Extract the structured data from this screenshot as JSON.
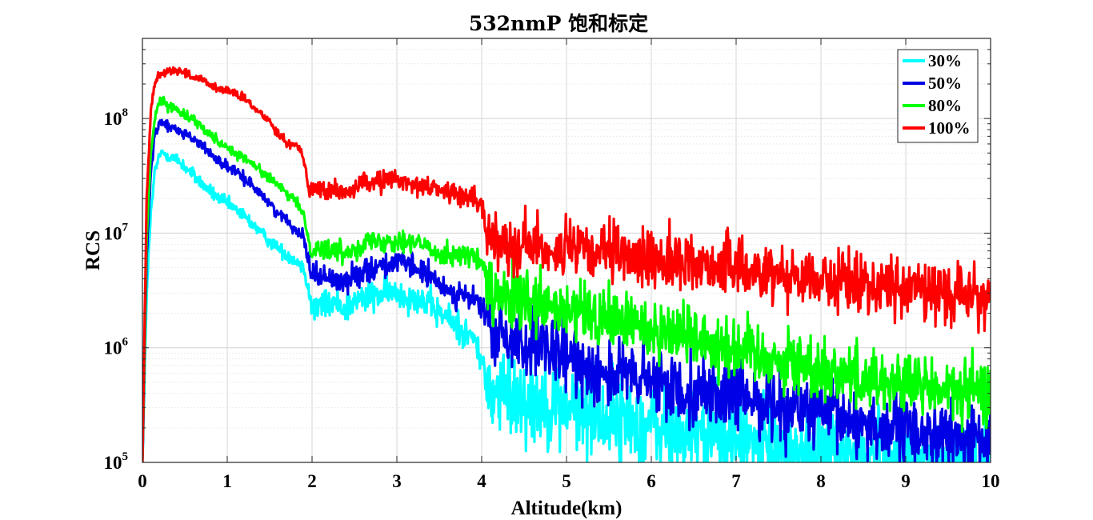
{
  "chart_data": {
    "type": "line",
    "title": "532nmP 饱和标定",
    "xlabel": "Altitude(km)",
    "ylabel": "RCS",
    "xlim": [
      0,
      10
    ],
    "ylim": [
      100000,
      500000000
    ],
    "yscale": "log",
    "grid": true,
    "legend_position": "top-right",
    "x_ticks": [
      "0",
      "1",
      "2",
      "3",
      "4",
      "5",
      "6",
      "7",
      "8",
      "9",
      "10"
    ],
    "y_ticks": [
      {
        "base": "10",
        "exp": "5"
      },
      {
        "base": "10",
        "exp": "6"
      },
      {
        "base": "10",
        "exp": "7"
      },
      {
        "base": "10",
        "exp": "8"
      }
    ],
    "series": [
      {
        "name": "30%",
        "color": "#00ffff",
        "x": [
          0,
          0.05,
          0.1,
          0.15,
          0.2,
          0.25,
          0.3,
          0.4,
          0.5,
          0.6,
          0.7,
          0.8,
          0.9,
          1.0,
          1.1,
          1.2,
          1.3,
          1.4,
          1.5,
          1.6,
          1.7,
          1.8,
          1.85,
          1.9,
          1.95,
          2.0,
          2.1,
          2.2,
          2.3,
          2.4,
          2.5,
          2.6,
          2.7,
          2.8,
          2.9,
          3.0,
          3.1,
          3.2,
          3.3,
          3.4,
          3.5,
          3.6,
          3.7,
          3.8,
          3.9,
          4.0,
          4.05,
          4.1,
          4.3,
          4.5,
          5.0,
          5.5,
          6.0,
          6.5,
          7.0,
          7.5,
          8.0,
          8.5,
          9.0,
          9.5,
          10.0
        ],
        "values": [
          100000,
          3000000,
          15000000,
          35000000,
          48000000,
          50000000,
          48000000,
          44000000,
          38000000,
          32000000,
          27000000,
          23000000,
          20000000,
          18000000,
          16000000,
          14000000,
          12000000,
          10000000,
          8500000,
          7500000,
          6500000,
          5800000,
          5500000,
          5000000,
          3500000,
          2200000,
          2300000,
          2400000,
          2400000,
          2300000,
          2500000,
          2700000,
          2800000,
          2900000,
          3000000,
          3000000,
          2900000,
          2800000,
          2600000,
          2300000,
          2000000,
          1800000,
          1600000,
          1400000,
          1200000,
          800000,
          500000,
          420000,
          400000,
          380000,
          300000,
          250000,
          200000,
          180000,
          150000,
          130000,
          120000,
          115000,
          110000,
          105000,
          100000
        ],
        "noise": 0.28
      },
      {
        "name": "50%",
        "color": "#0000e6",
        "x": [
          0,
          0.05,
          0.1,
          0.15,
          0.2,
          0.25,
          0.3,
          0.4,
          0.5,
          0.6,
          0.7,
          0.8,
          0.9,
          1.0,
          1.1,
          1.2,
          1.3,
          1.4,
          1.5,
          1.6,
          1.7,
          1.8,
          1.85,
          1.9,
          1.95,
          2.0,
          2.1,
          2.2,
          2.3,
          2.4,
          2.5,
          2.6,
          2.7,
          2.8,
          2.9,
          3.0,
          3.1,
          3.2,
          3.3,
          3.4,
          3.5,
          3.6,
          3.7,
          3.8,
          3.9,
          4.0,
          4.05,
          4.1,
          4.3,
          4.5,
          5.0,
          5.5,
          6.0,
          6.5,
          7.0,
          7.5,
          8.0,
          8.5,
          9.0,
          9.5,
          10.0
        ],
        "values": [
          100000,
          6000000,
          35000000,
          75000000,
          90000000,
          92000000,
          86000000,
          80000000,
          75000000,
          66000000,
          58000000,
          50000000,
          43000000,
          38000000,
          34000000,
          30000000,
          26000000,
          22000000,
          18000000,
          15000000,
          13000000,
          11000000,
          10000000,
          9500000,
          6000000,
          4500000,
          4200000,
          4000000,
          3900000,
          3800000,
          4200000,
          4700000,
          5000000,
          5200000,
          5400000,
          5500000,
          5300000,
          5000000,
          4600000,
          4000000,
          3600000,
          3200000,
          3000000,
          2800000,
          2600000,
          2400000,
          1800000,
          1300000,
          1200000,
          1100000,
          800000,
          600000,
          500000,
          420000,
          380000,
          320000,
          260000,
          220000,
          190000,
          160000,
          150000
        ],
        "noise": 0.22
      },
      {
        "name": "80%",
        "color": "#00ff00",
        "x": [
          0,
          0.05,
          0.1,
          0.15,
          0.2,
          0.25,
          0.3,
          0.4,
          0.5,
          0.6,
          0.7,
          0.8,
          0.9,
          1.0,
          1.1,
          1.2,
          1.3,
          1.4,
          1.5,
          1.6,
          1.7,
          1.8,
          1.85,
          1.9,
          1.95,
          2.0,
          2.1,
          2.2,
          2.3,
          2.4,
          2.5,
          2.6,
          2.7,
          2.8,
          2.9,
          3.0,
          3.1,
          3.2,
          3.3,
          3.4,
          3.5,
          3.6,
          3.7,
          3.8,
          3.9,
          4.0,
          4.05,
          4.1,
          4.3,
          4.5,
          5.0,
          5.5,
          6.0,
          6.5,
          7.0,
          7.5,
          8.0,
          8.5,
          9.0,
          9.5,
          10.0
        ],
        "values": [
          100000,
          9000000,
          50000000,
          110000000,
          135000000,
          140000000,
          130000000,
          120000000,
          110000000,
          98000000,
          86000000,
          74000000,
          63000000,
          56000000,
          50000000,
          45000000,
          40000000,
          35000000,
          30000000,
          26000000,
          22000000,
          19000000,
          17000000,
          15000000,
          9000000,
          7500000,
          7300000,
          7200000,
          7000000,
          6800000,
          7500000,
          8200000,
          8500000,
          8500000,
          8600000,
          8800000,
          8600000,
          8300000,
          7800000,
          7200000,
          6800000,
          6600000,
          6500000,
          6500000,
          6200000,
          5500000,
          4000000,
          2800000,
          2600000,
          2400000,
          2000000,
          1800000,
          1500000,
          1300000,
          1000000,
          800000,
          650000,
          550000,
          480000,
          420000,
          400000
        ],
        "noise": 0.2
      },
      {
        "name": "100%",
        "color": "#ff0000",
        "x": [
          0,
          0.05,
          0.1,
          0.15,
          0.2,
          0.25,
          0.3,
          0.4,
          0.5,
          0.6,
          0.7,
          0.8,
          0.9,
          1.0,
          1.1,
          1.2,
          1.3,
          1.4,
          1.5,
          1.6,
          1.7,
          1.8,
          1.85,
          1.9,
          1.95,
          2.0,
          2.1,
          2.2,
          2.3,
          2.4,
          2.5,
          2.6,
          2.7,
          2.8,
          2.9,
          3.0,
          3.1,
          3.2,
          3.3,
          3.4,
          3.5,
          3.6,
          3.7,
          3.8,
          3.9,
          4.0,
          4.05,
          4.1,
          4.3,
          4.5,
          5.0,
          5.5,
          6.0,
          6.5,
          7.0,
          7.5,
          8.0,
          8.5,
          9.0,
          9.5,
          10.0
        ],
        "values": [
          100000,
          20000000,
          120000000,
          210000000,
          240000000,
          255000000,
          260000000,
          265000000,
          250000000,
          230000000,
          215000000,
          195000000,
          180000000,
          175000000,
          165000000,
          150000000,
          125000000,
          110000000,
          95000000,
          75000000,
          62000000,
          58000000,
          57000000,
          45000000,
          28000000,
          24000000,
          24000000,
          23000000,
          23000000,
          22000000,
          25000000,
          27000000,
          28000000,
          28500000,
          29000000,
          29000000,
          28000000,
          27000000,
          26000000,
          25000000,
          24000000,
          23000000,
          22000000,
          21000000,
          20000000,
          17000000,
          11000000,
          9000000,
          8500000,
          8000000,
          7000000,
          6500000,
          6000000,
          5500000,
          5000000,
          4500000,
          4000000,
          3600000,
          3300000,
          3000000,
          2800000
        ],
        "noise": 0.18
      }
    ]
  }
}
